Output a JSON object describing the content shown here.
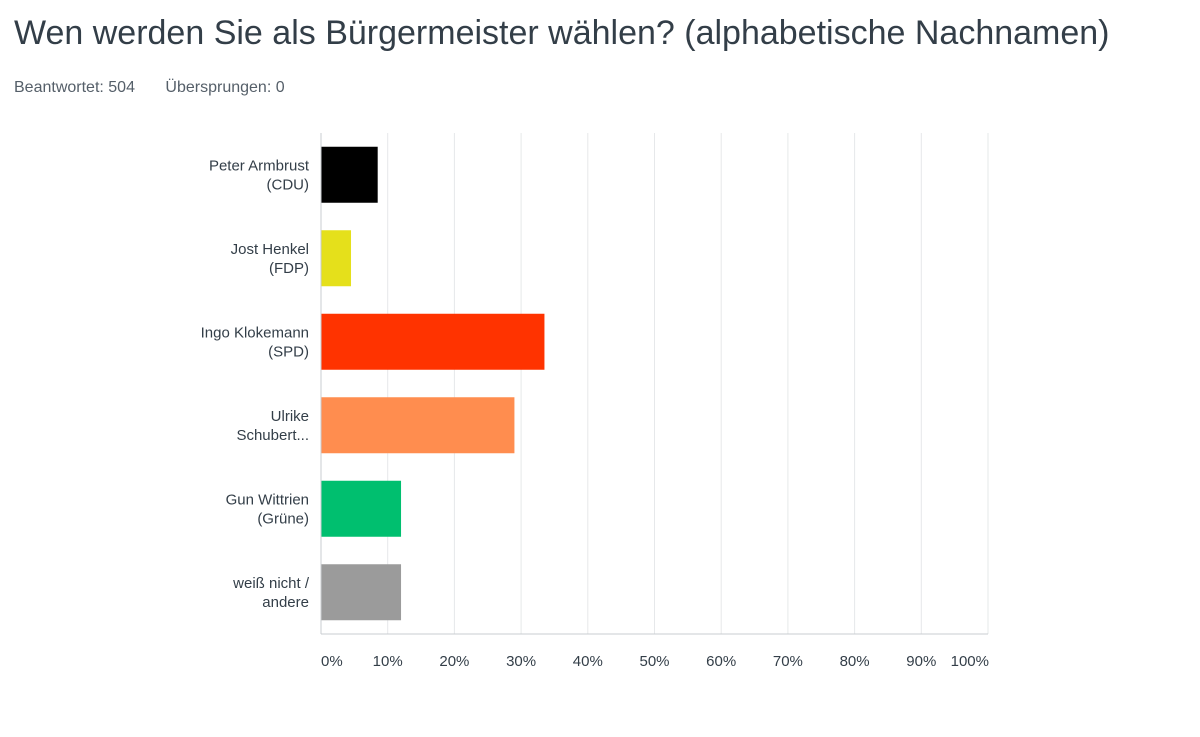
{
  "question": {
    "title": "Wen werden Sie als Bürgermeister wählen? (alphabetische Nachnamen)",
    "answered": "Beantwortet: 504",
    "skipped": "Übersprungen: 0"
  },
  "chart_data": {
    "type": "bar",
    "orientation": "horizontal",
    "title": "Wen werden Sie als Bürgermeister wählen? (alphabetische Nachnamen)",
    "categories": [
      [
        "Peter Armbrust",
        "(CDU)"
      ],
      [
        "Jost Henkel",
        "(FDP)"
      ],
      [
        "Ingo Klokemann",
        "(SPD)"
      ],
      [
        "Ulrike",
        "Schubert..."
      ],
      [
        "Gun Wittrien",
        "(Grüne)"
      ],
      [
        "weiß nicht /",
        "andere"
      ]
    ],
    "values": [
      8.5,
      4.5,
      33.5,
      29,
      12,
      12
    ],
    "colors": [
      "#000000",
      "#e5e01b",
      "#ff3300",
      "#ff8d4f",
      "#00bf6f",
      "#9b9b9b"
    ],
    "xlim": [
      0,
      100
    ],
    "xticks": [
      "0%",
      "10%",
      "20%",
      "30%",
      "40%",
      "50%",
      "60%",
      "70%",
      "80%",
      "90%",
      "100%"
    ],
    "grid": true
  }
}
